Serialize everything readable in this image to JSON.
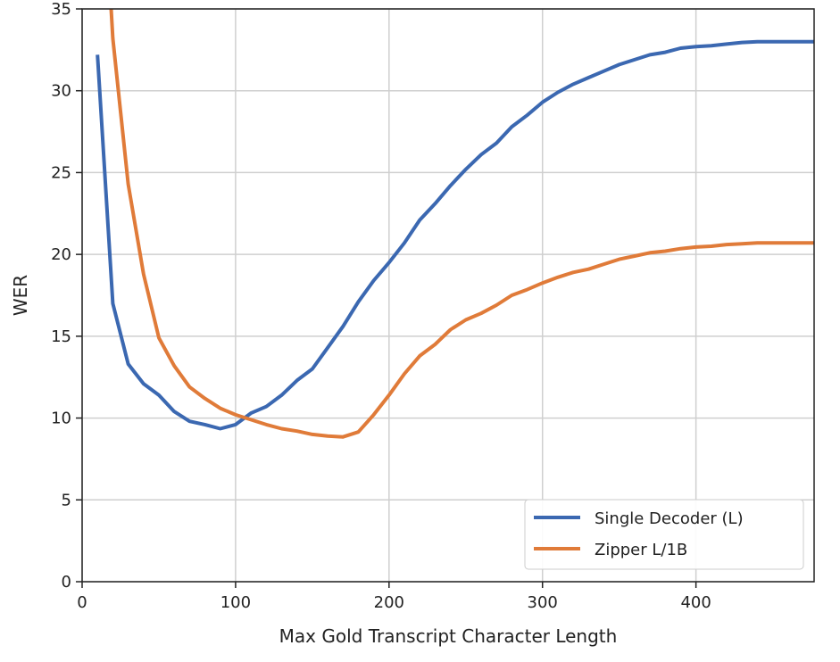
{
  "chart_data": {
    "type": "line",
    "title": "",
    "xlabel": "Max Gold Transcript Character Length",
    "ylabel": "WER",
    "xlim": [
      0,
      477
    ],
    "ylim": [
      0,
      35
    ],
    "xticks": [
      0,
      100,
      200,
      300,
      400
    ],
    "yticks": [
      0,
      5,
      10,
      15,
      20,
      25,
      30,
      35
    ],
    "grid": true,
    "legend_position": "bottom-right",
    "series": [
      {
        "name": "Single Decoder (L)",
        "color": "#3b68b1",
        "x": [
          10,
          20,
          30,
          40,
          50,
          60,
          70,
          80,
          90,
          100,
          110,
          120,
          130,
          140,
          150,
          160,
          170,
          180,
          190,
          200,
          210,
          220,
          230,
          240,
          250,
          260,
          270,
          280,
          290,
          300,
          310,
          320,
          330,
          340,
          350,
          360,
          370,
          380,
          390,
          400,
          410,
          420,
          430,
          440,
          450,
          460,
          470,
          477
        ],
        "y": [
          32.2,
          17.0,
          13.3,
          12.1,
          11.4,
          10.4,
          9.8,
          9.6,
          9.35,
          9.6,
          10.3,
          10.7,
          11.4,
          12.3,
          13.0,
          14.3,
          15.6,
          17.1,
          18.4,
          19.5,
          20.7,
          22.1,
          23.1,
          24.2,
          25.2,
          26.1,
          26.8,
          27.8,
          28.5,
          29.3,
          29.9,
          30.4,
          30.8,
          31.2,
          31.6,
          31.9,
          32.2,
          32.35,
          32.6,
          32.7,
          32.75,
          32.85,
          32.95,
          33.0,
          33.0,
          33.0,
          33.0,
          33.0
        ]
      },
      {
        "name": "Zipper L/1B",
        "color": "#e07b39",
        "x": [
          18,
          20,
          30,
          40,
          50,
          60,
          70,
          80,
          90,
          100,
          110,
          120,
          130,
          140,
          150,
          160,
          170,
          180,
          190,
          200,
          210,
          220,
          230,
          240,
          250,
          260,
          270,
          280,
          290,
          300,
          310,
          320,
          330,
          340,
          350,
          360,
          370,
          380,
          390,
          400,
          410,
          420,
          430,
          440,
          450,
          460,
          470,
          477
        ],
        "y": [
          36.5,
          33.2,
          24.3,
          18.8,
          14.9,
          13.2,
          11.9,
          11.2,
          10.6,
          10.2,
          9.9,
          9.6,
          9.35,
          9.2,
          9.0,
          8.9,
          8.85,
          9.15,
          10.2,
          11.4,
          12.7,
          13.8,
          14.5,
          15.4,
          16.0,
          16.4,
          16.9,
          17.5,
          17.85,
          18.25,
          18.6,
          18.9,
          19.1,
          19.4,
          19.7,
          19.9,
          20.1,
          20.2,
          20.35,
          20.45,
          20.5,
          20.6,
          20.65,
          20.7,
          20.7,
          20.7,
          20.7,
          20.7
        ]
      }
    ]
  }
}
